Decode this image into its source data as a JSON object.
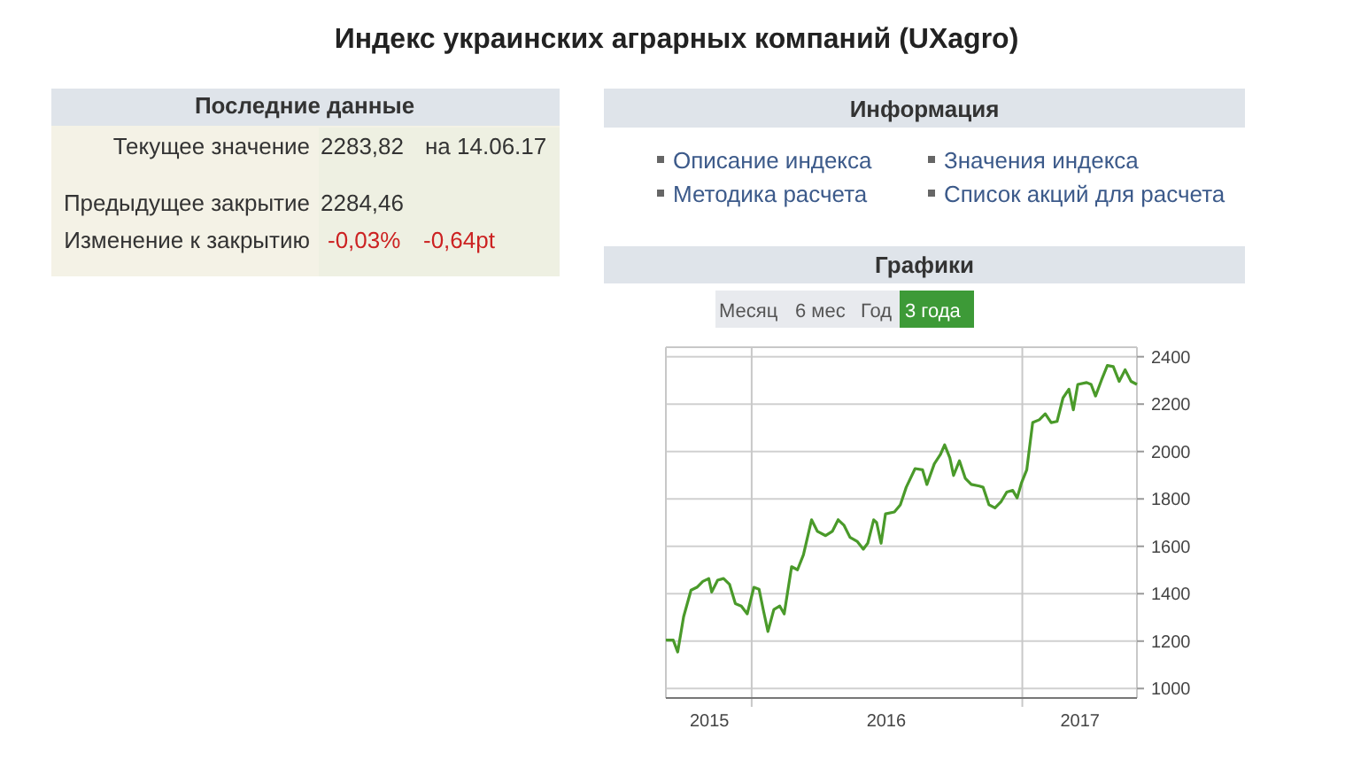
{
  "chart_data": [
    {
      "type": "other",
      "title": "Индекс украинских аграрных компаний (UXagro)",
      "annotations": [
        "Последние данные",
        "Текущее значение",
        "2283,82",
        "на 14.06.17",
        "Предыдущее закрытие",
        "2284,46",
        "Изменение к закрытию",
        "-0,03%",
        "-0,64pt",
        "Информация",
        "Описание индекса",
        "Значения индекса",
        "Методика расчета",
        "Список акций для расчета"
      ]
    },
    {
      "type": "line",
      "title": "Графики",
      "annotations": [
        "Месяц",
        "6 мес",
        "Год",
        "3 года"
      ],
      "xlim": [
        "2015-09-07",
        "2017-06-05"
      ],
      "xticks": [
        {
          "value": "2015-11-05",
          "label": "2015"
        },
        {
          "value": "2016-01-01",
          "label": null
        },
        {
          "value": "2016-07-01",
          "label": "2016"
        },
        {
          "value": "2017-01-01",
          "label": null
        },
        {
          "value": "2017-03-20",
          "label": "2017"
        }
      ],
      "ylim": [
        960,
        2440
      ],
      "yticks": [
        1000,
        1200,
        1400,
        1600,
        1800,
        2000,
        2200,
        2400
      ],
      "grid": true,
      "series": [
        {
          "color": "#4a9a2a",
          "x": [
            "2015-09-07",
            "2015-09-17",
            "2015-09-23",
            "2015-10-01",
            "2015-10-11",
            "2015-10-19",
            "2015-10-27",
            "2015-11-04",
            "2015-11-08",
            "2015-11-16",
            "2015-11-24",
            "2015-12-02",
            "2015-12-10",
            "2015-12-18",
            "2015-12-26",
            "2016-01-04",
            "2016-01-11",
            "2016-01-17",
            "2016-01-23",
            "2016-01-31",
            "2016-02-08",
            "2016-02-14",
            "2016-02-24",
            "2016-03-03",
            "2016-03-11",
            "2016-03-22",
            "2016-03-30",
            "2016-04-10",
            "2016-04-19",
            "2016-04-27",
            "2016-05-05",
            "2016-05-13",
            "2016-05-23",
            "2016-05-31",
            "2016-06-06",
            "2016-06-14",
            "2016-06-18",
            "2016-06-24",
            "2016-06-30",
            "2016-07-12",
            "2016-07-20",
            "2016-07-28",
            "2016-08-09",
            "2016-08-19",
            "2016-08-25",
            "2016-09-04",
            "2016-09-12",
            "2016-09-18",
            "2016-09-25",
            "2016-09-30",
            "2016-10-08",
            "2016-10-16",
            "2016-10-24",
            "2016-11-04",
            "2016-11-09",
            "2016-11-17",
            "2016-11-25",
            "2016-12-03",
            "2016-12-11",
            "2016-12-19",
            "2016-12-25",
            "2016-12-31",
            "2017-01-07",
            "2017-01-15",
            "2017-01-24",
            "2017-02-01",
            "2017-02-09",
            "2017-02-17",
            "2017-02-25",
            "2017-03-05",
            "2017-03-11",
            "2017-03-17",
            "2017-03-29",
            "2017-04-04",
            "2017-04-10",
            "2017-04-18",
            "2017-04-26",
            "2017-05-04",
            "2017-05-12",
            "2017-05-20",
            "2017-05-28",
            "2017-06-05"
          ],
          "values": [
            1204,
            1204,
            1154,
            1303,
            1415,
            1427,
            1452,
            1464,
            1407,
            1457,
            1464,
            1440,
            1358,
            1348,
            1315,
            1427,
            1419,
            1328,
            1241,
            1333,
            1348,
            1315,
            1514,
            1501,
            1564,
            1712,
            1663,
            1645,
            1663,
            1712,
            1688,
            1638,
            1620,
            1588,
            1613,
            1712,
            1700,
            1613,
            1737,
            1745,
            1775,
            1849,
            1928,
            1923,
            1861,
            1948,
            1986,
            2028,
            1973,
            1899,
            1961,
            1886,
            1861,
            1854,
            1849,
            1775,
            1762,
            1787,
            1829,
            1836,
            1804,
            1869,
            1923,
            2122,
            2134,
            2159,
            2122,
            2127,
            2226,
            2263,
            2176,
            2283,
            2291,
            2283,
            2234,
            2301,
            2363,
            2358,
            2296,
            2345,
            2296,
            2283
          ]
        }
      ]
    }
  ]
}
